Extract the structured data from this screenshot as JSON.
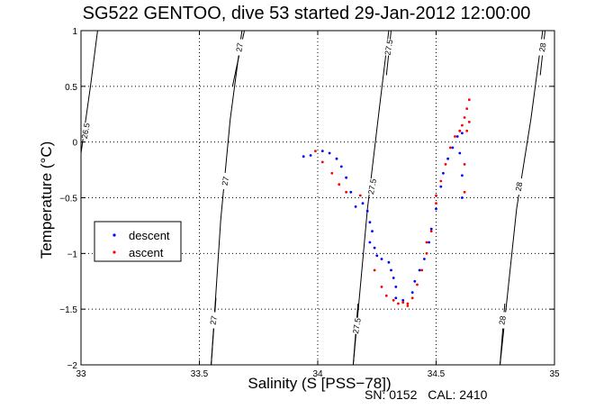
{
  "header": {
    "title": "SG522 GENTOO, dive 53 started 29-Jan-2012 12:00:00"
  },
  "footer": {
    "sn": "SN: 0152",
    "cal": "CAL: 2410"
  },
  "colors": {
    "descent": "#0000ff",
    "ascent": "#ff0000",
    "grid": "#000000",
    "contour": "#000000"
  },
  "chart_data": {
    "type": "scatter",
    "title": "SG522 GENTOO, dive 53 started 29-Jan-2012 12:00:00",
    "xlabel": "Salinity (S [PSS−78])",
    "ylabel": "Temperature (°C)",
    "xlim": [
      33,
      35
    ],
    "ylim": [
      -2,
      1
    ],
    "xticks": [
      33,
      33.5,
      34,
      34.5,
      35
    ],
    "xtick_labels": [
      "33",
      "33.5",
      "34",
      "34.5",
      "35"
    ],
    "yticks": [
      -2,
      -1.5,
      -1,
      -0.5,
      0,
      0.5,
      1
    ],
    "ytick_labels": [
      "−2",
      "−1.5",
      "−1",
      "−0.5",
      "0",
      "0.5",
      "1"
    ],
    "grid": true,
    "legend_position": "center-left",
    "series": [
      {
        "name": "descent",
        "points": [
          [
            33.94,
            -0.13
          ],
          [
            33.97,
            -0.12
          ],
          [
            34.02,
            -0.08
          ],
          [
            34.05,
            -0.1
          ],
          [
            34.08,
            -0.15
          ],
          [
            34.1,
            -0.22
          ],
          [
            34.12,
            -0.32
          ],
          [
            34.14,
            -0.45
          ],
          [
            34.16,
            -0.58
          ],
          [
            34.19,
            -0.55
          ],
          [
            34.21,
            -0.62
          ],
          [
            34.22,
            -0.72
          ],
          [
            34.23,
            -0.8
          ],
          [
            34.22,
            -0.9
          ],
          [
            34.24,
            -0.95
          ],
          [
            34.25,
            -1.02
          ],
          [
            34.27,
            -1.05
          ],
          [
            34.3,
            -1.08
          ],
          [
            34.31,
            -1.15
          ],
          [
            34.32,
            -1.22
          ],
          [
            34.33,
            -1.3
          ],
          [
            34.33,
            -1.4
          ],
          [
            34.36,
            -1.42
          ],
          [
            34.4,
            -1.35
          ],
          [
            34.41,
            -1.25
          ],
          [
            34.43,
            -1.15
          ],
          [
            34.45,
            -1.05
          ],
          [
            34.47,
            -0.9
          ],
          [
            34.48,
            -0.78
          ],
          [
            34.5,
            -0.6
          ],
          [
            34.52,
            -0.4
          ],
          [
            34.53,
            -0.28
          ],
          [
            34.55,
            -0.15
          ],
          [
            34.57,
            -0.05
          ],
          [
            34.59,
            0.05
          ],
          [
            34.6,
            0.1
          ],
          [
            34.61,
            0.08
          ],
          [
            34.6,
            -0.1
          ],
          [
            34.61,
            -0.3
          ],
          [
            34.61,
            -0.5
          ]
        ]
      },
      {
        "name": "ascent",
        "points": [
          [
            33.99,
            -0.08
          ],
          [
            34.02,
            -0.18
          ],
          [
            34.06,
            -0.28
          ],
          [
            34.09,
            -0.38
          ],
          [
            34.12,
            -0.45
          ],
          [
            34.18,
            -0.48
          ],
          [
            34.24,
            -1.15
          ],
          [
            34.27,
            -1.3
          ],
          [
            34.29,
            -1.38
          ],
          [
            34.32,
            -1.42
          ],
          [
            34.36,
            -1.44
          ],
          [
            34.38,
            -1.45
          ],
          [
            34.4,
            -1.4
          ],
          [
            34.42,
            -1.28
          ],
          [
            34.44,
            -1.15
          ],
          [
            34.46,
            -1.0
          ],
          [
            34.48,
            -0.8
          ],
          [
            34.5,
            -0.55
          ],
          [
            34.52,
            -0.35
          ],
          [
            34.54,
            -0.2
          ],
          [
            34.56,
            -0.05
          ],
          [
            34.58,
            0.05
          ],
          [
            34.6,
            0.1
          ],
          [
            34.61,
            0.15
          ],
          [
            34.62,
            0.22
          ],
          [
            34.63,
            0.3
          ],
          [
            34.64,
            0.38
          ],
          [
            34.63,
            0.1
          ],
          [
            34.62,
            -0.2
          ],
          [
            34.62,
            -0.45
          ],
          [
            34.64,
            0.18
          ],
          [
            34.5,
            -0.48
          ],
          [
            34.46,
            -0.9
          ],
          [
            34.38,
            -1.47
          ],
          [
            34.34,
            -1.45
          ]
        ]
      }
    ],
    "contours": [
      {
        "label": "26.5",
        "points": [
          [
            33.07,
            1.0
          ],
          [
            33.04,
            0.5
          ],
          [
            33.0,
            -0.1
          ]
        ],
        "label_at": [
          33.02,
          0.1
        ]
      },
      {
        "label": "27",
        "points": [
          [
            33.68,
            1.0
          ],
          [
            33.63,
            0.2
          ],
          [
            33.59,
            -0.7
          ],
          [
            33.55,
            -2.0
          ]
        ],
        "label_at": [
          33.61,
          -0.35
        ]
      },
      {
        "label": "27",
        "points": [
          [
            33.69,
            1.0
          ],
          [
            33.64,
            0.5
          ]
        ],
        "label_at": [
          33.67,
          0.85
        ]
      },
      {
        "label": "27",
        "points": [
          [
            33.57,
            -1.4
          ],
          [
            33.55,
            -2.0
          ]
        ],
        "label_at": [
          33.56,
          -1.6
        ]
      },
      {
        "label": "27.5",
        "points": [
          [
            34.3,
            1.0
          ],
          [
            34.26,
            0.3
          ],
          [
            34.21,
            -0.6
          ],
          [
            34.15,
            -2.0
          ]
        ],
        "label_at": [
          34.23,
          -0.4
        ]
      },
      {
        "label": "27.5",
        "points": [
          [
            34.31,
            1.0
          ],
          [
            34.29,
            0.6
          ]
        ],
        "label_at": [
          34.3,
          0.85
        ]
      },
      {
        "label": "27.5",
        "points": [
          [
            34.17,
            -1.45
          ],
          [
            34.15,
            -2.0
          ]
        ],
        "label_at": [
          34.165,
          -1.65
        ]
      },
      {
        "label": "28",
        "points": [
          [
            34.95,
            1.0
          ],
          [
            34.9,
            0.2
          ],
          [
            34.84,
            -0.6
          ],
          [
            34.77,
            -2.0
          ]
        ],
        "label_at": [
          34.85,
          -0.4
        ]
      },
      {
        "label": "28",
        "points": [
          [
            34.96,
            1.0
          ],
          [
            34.94,
            0.6
          ]
        ],
        "label_at": [
          34.95,
          0.85
        ]
      },
      {
        "label": "28",
        "points": [
          [
            34.79,
            -1.45
          ],
          [
            34.77,
            -2.0
          ]
        ],
        "label_at": [
          34.78,
          -1.6
        ]
      }
    ]
  }
}
